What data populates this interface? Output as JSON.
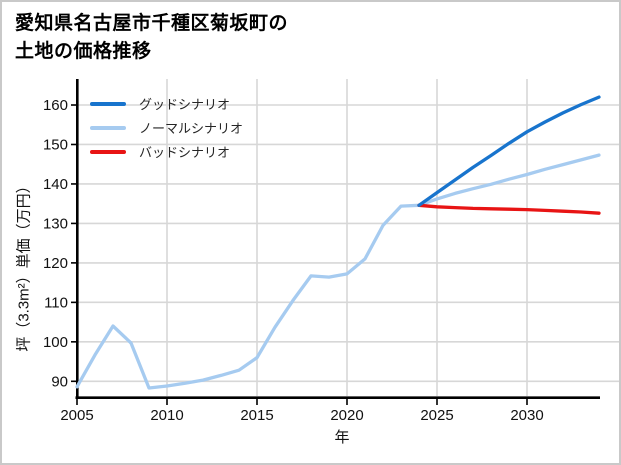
{
  "panel": {
    "background": "#ffffff",
    "border_color": "#c9c9c9"
  },
  "title": {
    "line1": "愛知県名古屋市千種区菊坂町の",
    "line2": "土地の価格推移"
  },
  "legend": {
    "items": [
      {
        "label": "グッドシナリオ",
        "color": "#1874cd"
      },
      {
        "label": "ノーマルシナリオ",
        "color": "#a6cbf0"
      },
      {
        "label": "バッドシナリオ",
        "color": "#e81414"
      }
    ]
  },
  "axes": {
    "x_label": "年",
    "y_label": "坪（3.3m²）単価（万円）"
  },
  "chart_data": {
    "type": "line",
    "title": "愛知県名古屋市千種区菊坂町の土地の価格推移",
    "xlabel": "年",
    "ylabel": "坪（3.3m²）単価（万円）",
    "x_ticks": [
      2005,
      2010,
      2015,
      2020,
      2025,
      2030
    ],
    "y_ticks": [
      90,
      100,
      110,
      120,
      130,
      140,
      150,
      160
    ],
    "xlim": [
      2005,
      2035.3
    ],
    "ylim": [
      86,
      166.5
    ],
    "grid": true,
    "grid_color": "#d7d7d7",
    "legend_position": "upper-left",
    "branch_year": 2024,
    "series": [
      {
        "name": "グッドシナリオ",
        "color": "#1874cd",
        "start_year": 2024,
        "values": [
          134.6,
          137.8,
          141.0,
          144.2,
          147.2,
          150.3,
          153.2,
          155.7,
          158.0,
          160.1,
          162.0
        ]
      },
      {
        "name": "ノーマルシナリオ",
        "color": "#a6cbf0",
        "start_year": 2005,
        "values": [
          88.6,
          96.7,
          104.0,
          99.7,
          88.3,
          88.8,
          89.5,
          90.3,
          91.5,
          92.8,
          96.0,
          103.7,
          110.5,
          116.7,
          116.4,
          117.2,
          121.0,
          129.5,
          134.4,
          134.6,
          136.2,
          137.6,
          138.8,
          139.9,
          141.2,
          142.4,
          143.7,
          144.9,
          146.1,
          147.3
        ]
      },
      {
        "name": "バッドシナリオ",
        "color": "#e81414",
        "start_year": 2024,
        "values": [
          134.6,
          134.2,
          134.0,
          133.8,
          133.7,
          133.6,
          133.5,
          133.3,
          133.1,
          132.9,
          132.6
        ]
      }
    ]
  }
}
